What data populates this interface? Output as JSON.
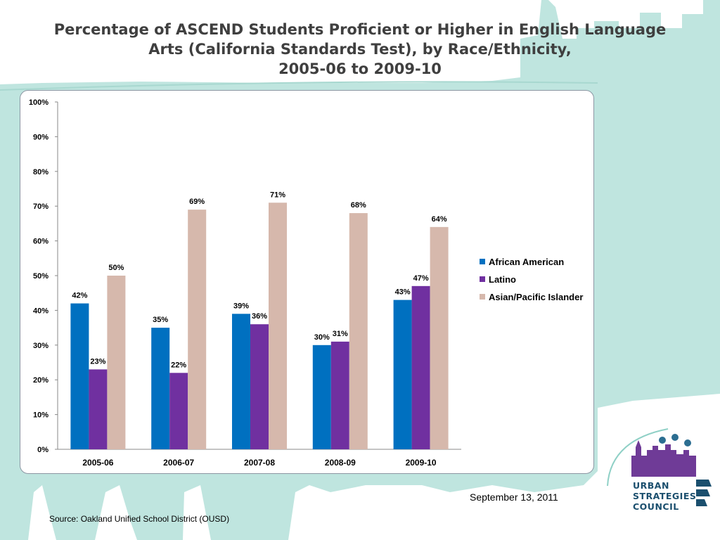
{
  "slide": {
    "title_lines": [
      "Percentage of ASCEND Students Proficient or Higher in English Language",
      "Arts (California Standards Test), by Race/Ethnicity,",
      "2005-06 to 2009-10"
    ],
    "source": "Source: Oakland Unified School District (OUSD)",
    "date": "September 13, 2011",
    "logo_lines": [
      "URBAN",
      "STRATEGIES",
      "COUNCIL"
    ],
    "logo_icon": "city-skyline-people-icon",
    "colors": {
      "background_shape": "#bfe5df",
      "title": "#3f3f3f",
      "logo": "#1b4f6e"
    }
  },
  "chart_data": {
    "type": "bar",
    "title": "",
    "categories": [
      "2005-06",
      "2006-07",
      "2007-08",
      "2008-09",
      "2009-10"
    ],
    "series": [
      {
        "name": "African American",
        "color": "#0070c0",
        "values": [
          42,
          35,
          39,
          30,
          43
        ]
      },
      {
        "name": "Latino",
        "color": "#7030a0",
        "values": [
          23,
          22,
          36,
          31,
          47
        ]
      },
      {
        "name": "Asian/Pacific Islander",
        "color": "#d6b8ac",
        "values": [
          50,
          69,
          71,
          68,
          64
        ]
      }
    ],
    "ylim": [
      0,
      100
    ],
    "yticks": [
      "0%",
      "10%",
      "20%",
      "30%",
      "40%",
      "50%",
      "60%",
      "70%",
      "80%",
      "90%",
      "100%"
    ],
    "value_suffix": "%",
    "grid": false,
    "legend_position": "right"
  }
}
